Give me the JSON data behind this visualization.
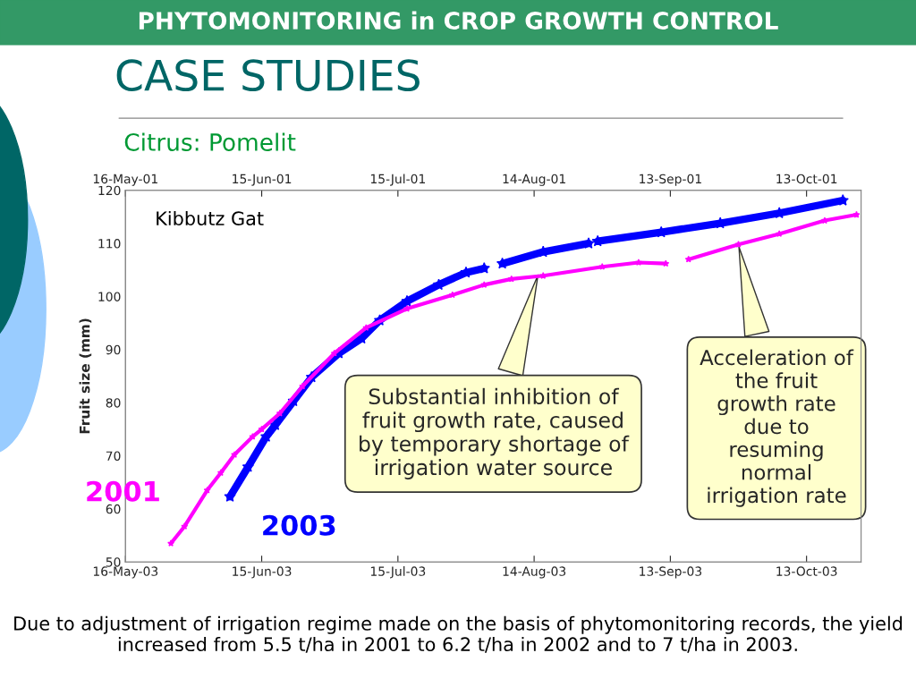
{
  "chart_data": {
    "type": "line",
    "title": "PHYTOMONITORING in CROP GROWTH CONTROL",
    "subtitle": "Citrus: Pomelit",
    "ylabel": "Fruit size (mm)",
    "xlim": [
      "2003-05-16",
      "2003-10-25"
    ],
    "xticks": [
      {
        "value": "2003-05-16",
        "label": "16-May-03"
      },
      {
        "value": "2003-06-15",
        "label": "15-Jun-03"
      },
      {
        "value": "2003-07-15",
        "label": "15-Jul-03"
      },
      {
        "value": "2003-08-14",
        "label": "14-Aug-03"
      },
      {
        "value": "2003-09-13",
        "label": "13-Sep-03"
      },
      {
        "value": "2003-10-13",
        "label": "13-Oct-03"
      }
    ],
    "x2lim": [
      "2001-05-16",
      "2001-10-25"
    ],
    "x2ticks": [
      {
        "value": "2001-05-16",
        "label": "16-May-01"
      },
      {
        "value": "2001-06-15",
        "label": "15-Jun-01"
      },
      {
        "value": "2001-07-15",
        "label": "15-Jul-01"
      },
      {
        "value": "2001-08-14",
        "label": "14-Aug-01"
      },
      {
        "value": "2001-09-13",
        "label": "13-Sep-01"
      },
      {
        "value": "2001-10-13",
        "label": "13-Oct-01"
      }
    ],
    "ylim": [
      50,
      120
    ],
    "yticks": [
      50,
      60,
      70,
      80,
      90,
      100,
      110,
      120
    ],
    "grid": false,
    "legend": false,
    "marker": "star",
    "series": [
      {
        "name": "2001",
        "color": "#ff00ff",
        "axis": "x2",
        "x": [
          "2001-05-26",
          "2001-05-29",
          "2001-06-03",
          "2001-06-06",
          "2001-06-09",
          "2001-06-13",
          "2001-06-15",
          "2001-06-19",
          "2001-06-24",
          "2001-07-01",
          "2001-07-08",
          "2001-07-17",
          "2001-07-27",
          "2001-08-03",
          "2001-08-09",
          "2001-08-16",
          "2001-08-29",
          "2001-09-06",
          "2001-09-12",
          "2001-09-15",
          "2001-09-17",
          "2001-09-28",
          "2001-10-07",
          "2001-10-17",
          "2001-10-24"
        ],
        "values": [
          53.5,
          56.7,
          63.5,
          66.8,
          70.2,
          73.6,
          75.0,
          78.0,
          83.1,
          89.3,
          94.1,
          97.7,
          100.3,
          102.2,
          103.3,
          103.9,
          105.6,
          106.4,
          106.2,
          null,
          107.0,
          109.8,
          111.8,
          114.3,
          115.4
        ]
      },
      {
        "name": "2003",
        "color": "#0000ff",
        "x": [
          "2003-06-08",
          "2003-06-12",
          "2003-06-16",
          "2003-06-18",
          "2003-06-22",
          "2003-06-26",
          "2003-07-02",
          "2003-07-07",
          "2003-07-11",
          "2003-07-17",
          "2003-07-24",
          "2003-07-30",
          "2003-08-03",
          "2003-08-05",
          "2003-08-07",
          "2003-08-16",
          "2003-08-26",
          "2003-08-27",
          "2003-08-28",
          "2003-09-11",
          "2003-09-24",
          "2003-10-07",
          "2003-10-21"
        ],
        "values": [
          62.3,
          67.9,
          73.6,
          75.8,
          80.3,
          84.8,
          89.3,
          92.1,
          95.5,
          99.1,
          102.2,
          104.5,
          105.3,
          null,
          106.2,
          108.4,
          110.0,
          null,
          110.4,
          112.1,
          113.8,
          115.7,
          118.1
        ]
      }
    ],
    "annotations": [
      "Kibbutz Gat",
      {
        "text": "Substantial inhibition of\nfruit growth rate, caused\nby temporary shortage of\nirrigation water source",
        "x": "2003-08-15",
        "y": 104.5
      },
      {
        "text": "Acceleration of\nthe fruit\ngrowth rate\ndue to\nresuming\nnormal\nirrigation rate",
        "x": "2003-09-28",
        "y": 109.8
      },
      "CASE STUDIES",
      "Due to adjustment of irrigation regime made on the basis of phytomonitoring records, the yield increased from 5.5 t/ha in 2001 to 6.2 t/ha in 2002 and to 7 t/ha in 2003."
    ]
  }
}
